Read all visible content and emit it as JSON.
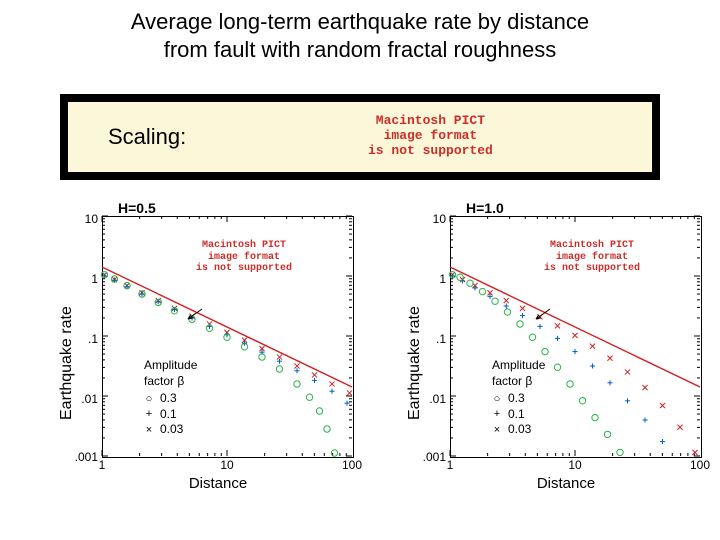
{
  "title_l1": "Average long-term earthquake rate by distance",
  "title_l2": "from fault with random fractal roughness",
  "scaling_label": "Scaling:",
  "pict_msg": "Macintosh PICT\nimage format\nis not supported",
  "y_axis_label": "Earthquake rate",
  "x_axis_label": "Distance",
  "panel_left_title": "H=0.5",
  "panel_right_title": "H=1.0",
  "legend": {
    "header1": "Amplitude",
    "header2": "factor β",
    "rows": [
      {
        "sym": "○",
        "label": "0.3"
      },
      {
        "sym": "+",
        "label": "0.1"
      },
      {
        "sym": "×",
        "label": "0.03"
      }
    ]
  },
  "yticks": [
    "10",
    "1",
    ".1",
    ".01",
    ".001"
  ],
  "xticks": [
    "1",
    "10",
    "100"
  ],
  "axis_range": {
    "x_log_min": 0,
    "x_log_max": 2,
    "y_log_min": -3,
    "y_log_max": 1
  },
  "colors": {
    "fit_line": "#d22020",
    "series_03": "#2bb24a",
    "series_01": "#0060c0",
    "series_003": "#d22020",
    "arrow": "#000000",
    "axis": "#000000",
    "scaling_bg": "#fcf7d8",
    "band_bg": "#000000",
    "pict_text": "#cc2e2a"
  },
  "fit_line_width": 1.4,
  "marker_size": 3.2,
  "left_panel": {
    "fit_line": {
      "x1_log": 0,
      "y1_log": 0.15,
      "x2_log": 2,
      "y2_log": -1.85
    },
    "series_03": [
      [
        0.02,
        0.02
      ],
      [
        0.1,
        -0.05
      ],
      [
        0.2,
        -0.16
      ],
      [
        0.32,
        -0.3
      ],
      [
        0.45,
        -0.44
      ],
      [
        0.58,
        -0.58
      ],
      [
        0.72,
        -0.72
      ],
      [
        0.86,
        -0.87
      ],
      [
        1.0,
        -1.02
      ],
      [
        1.14,
        -1.18
      ],
      [
        1.28,
        -1.35
      ],
      [
        1.42,
        -1.55
      ],
      [
        1.56,
        -1.8
      ],
      [
        1.66,
        -2.02
      ],
      [
        1.74,
        -2.25
      ],
      [
        1.8,
        -2.55
      ],
      [
        1.86,
        -2.95
      ]
    ],
    "series_01": [
      [
        0.02,
        0.0
      ],
      [
        0.1,
        -0.07
      ],
      [
        0.2,
        -0.18
      ],
      [
        0.32,
        -0.3
      ],
      [
        0.45,
        -0.43
      ],
      [
        0.58,
        -0.56
      ],
      [
        0.72,
        -0.7
      ],
      [
        0.86,
        -0.84
      ],
      [
        1.0,
        -0.98
      ],
      [
        1.14,
        -1.12
      ],
      [
        1.28,
        -1.27
      ],
      [
        1.42,
        -1.42
      ],
      [
        1.56,
        -1.58
      ],
      [
        1.7,
        -1.74
      ],
      [
        1.84,
        -1.92
      ],
      [
        1.96,
        -2.12
      ]
    ],
    "series_003": [
      [
        0.02,
        0.02
      ],
      [
        0.1,
        -0.06
      ],
      [
        0.2,
        -0.16
      ],
      [
        0.32,
        -0.28
      ],
      [
        0.45,
        -0.41
      ],
      [
        0.58,
        -0.54
      ],
      [
        0.72,
        -0.67
      ],
      [
        0.86,
        -0.8
      ],
      [
        1.0,
        -0.94
      ],
      [
        1.14,
        -1.07
      ],
      [
        1.28,
        -1.21
      ],
      [
        1.42,
        -1.35
      ],
      [
        1.56,
        -1.5
      ],
      [
        1.7,
        -1.65
      ],
      [
        1.84,
        -1.8
      ],
      [
        1.98,
        -1.95
      ]
    ],
    "arrow": {
      "x_log": 0.8,
      "y_log": -0.55,
      "dx": -14,
      "dy": 10
    }
  },
  "right_panel": {
    "fit_line": {
      "x1_log": 0,
      "y1_log": 0.15,
      "x2_log": 2,
      "y2_log": -1.85
    },
    "series_03": [
      [
        0.02,
        0.02
      ],
      [
        0.08,
        -0.02
      ],
      [
        0.16,
        -0.12
      ],
      [
        0.26,
        -0.26
      ],
      [
        0.36,
        -0.42
      ],
      [
        0.46,
        -0.6
      ],
      [
        0.56,
        -0.8
      ],
      [
        0.66,
        -1.02
      ],
      [
        0.76,
        -1.26
      ],
      [
        0.86,
        -1.52
      ],
      [
        0.96,
        -1.8
      ],
      [
        1.06,
        -2.08
      ],
      [
        1.16,
        -2.36
      ],
      [
        1.26,
        -2.64
      ],
      [
        1.36,
        -2.94
      ]
    ],
    "series_01": [
      [
        0.02,
        0.0
      ],
      [
        0.1,
        -0.08
      ],
      [
        0.2,
        -0.2
      ],
      [
        0.32,
        -0.34
      ],
      [
        0.45,
        -0.5
      ],
      [
        0.58,
        -0.66
      ],
      [
        0.72,
        -0.84
      ],
      [
        0.86,
        -1.04
      ],
      [
        1.0,
        -1.26
      ],
      [
        1.14,
        -1.5
      ],
      [
        1.28,
        -1.78
      ],
      [
        1.42,
        -2.08
      ],
      [
        1.56,
        -2.4
      ],
      [
        1.7,
        -2.76
      ]
    ],
    "series_003": [
      [
        0.02,
        0.02
      ],
      [
        0.1,
        -0.06
      ],
      [
        0.2,
        -0.16
      ],
      [
        0.32,
        -0.28
      ],
      [
        0.45,
        -0.41
      ],
      [
        0.58,
        -0.54
      ],
      [
        0.72,
        -0.68
      ],
      [
        0.86,
        -0.83
      ],
      [
        1.0,
        -0.99
      ],
      [
        1.14,
        -1.17
      ],
      [
        1.28,
        -1.37
      ],
      [
        1.42,
        -1.6
      ],
      [
        1.56,
        -1.86
      ],
      [
        1.7,
        -2.16
      ],
      [
        1.84,
        -2.52
      ],
      [
        1.96,
        -2.94
      ]
    ],
    "arrow": {
      "x_log": 0.8,
      "y_log": -0.55,
      "dx": -14,
      "dy": 10
    }
  }
}
